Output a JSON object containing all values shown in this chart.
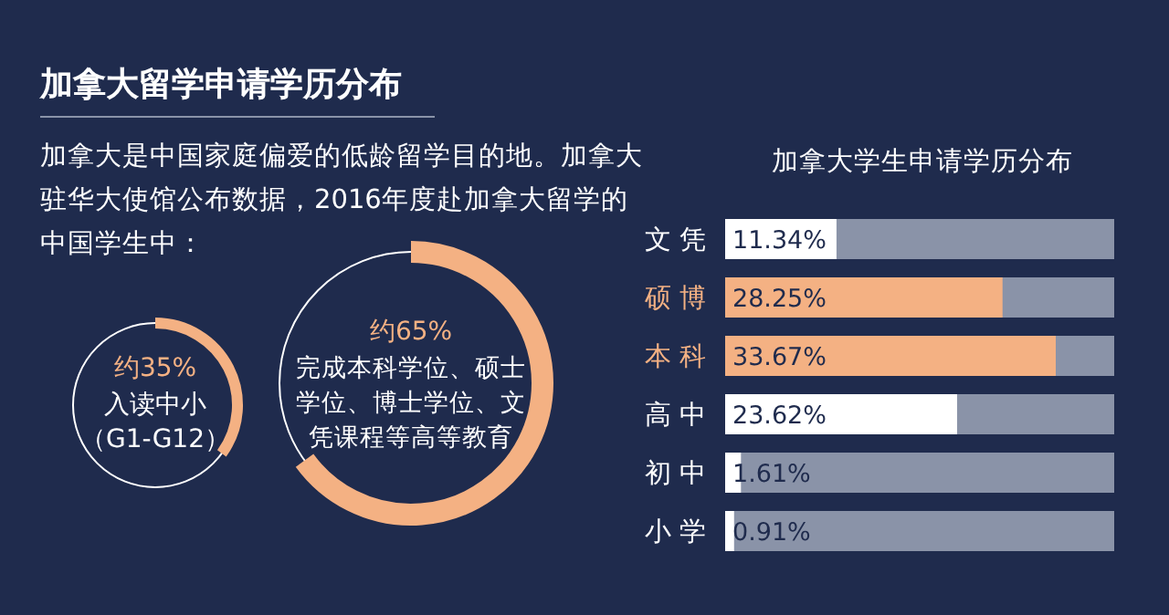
{
  "chart_data": [
    {
      "type": "other",
      "title": "加拿大留学申请学历分布",
      "subtitle": "加拿大是中国家庭偏爱的低龄留学目的地。加拿大驻华大使馆公布数据，2016年度赴加拿大留学的中国学生中：",
      "categories": [
        "入读中小（G1-G12）",
        "完成本科学位、硕士学位、博士学位、文凭课程等高等教育"
      ],
      "values": [
        35,
        65
      ],
      "value_labels": [
        "约35%",
        "约65%"
      ],
      "colors": [
        "#f4b183",
        "#f4b183"
      ]
    },
    {
      "type": "bar",
      "orientation": "horizontal",
      "title": "加拿大学生申请学历分布",
      "categories": [
        "文凭",
        "硕博",
        "本科",
        "高中",
        "初中",
        "小学"
      ],
      "values": [
        11.34,
        28.25,
        33.67,
        23.62,
        1.61,
        0.91
      ],
      "colors": [
        "#ffffff",
        "#f4b183",
        "#f4b183",
        "#ffffff",
        "#ffffff",
        "#ffffff"
      ],
      "value_labels": [
        "11.34%",
        "28.25%",
        "33.67%",
        "23.62%",
        "1.61%",
        "0.91%"
      ]
    }
  ]
}
